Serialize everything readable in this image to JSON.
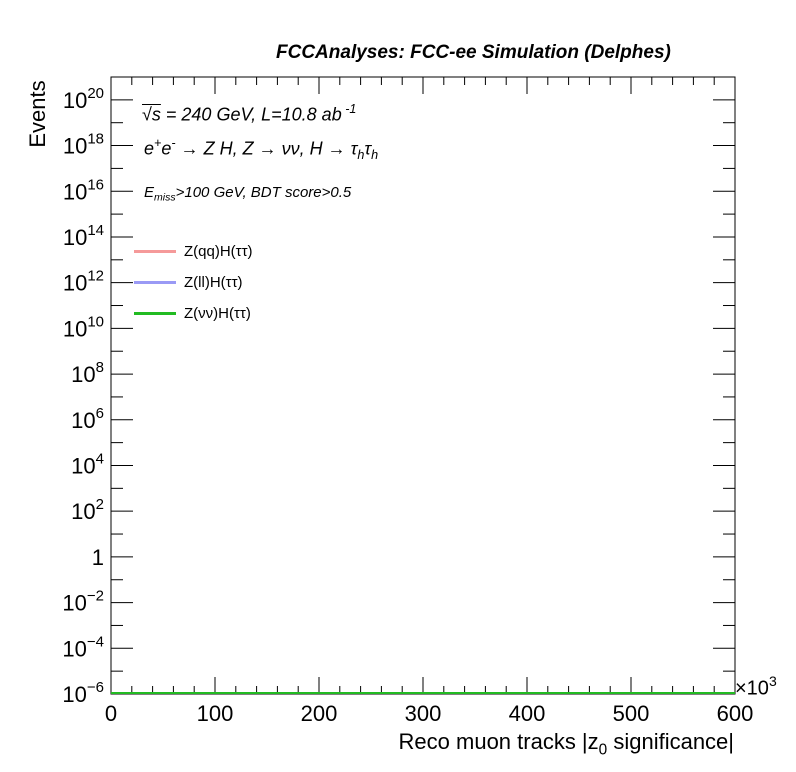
{
  "header": {
    "title": "FCCAnalyses: FCC-ee Simulation (Delphes)"
  },
  "annotations": {
    "line1_sqrt": "√s",
    "line1_rest": " = 240 GeV, L=10.8 ab",
    "line1_exp": " -1",
    "line2_a": "e",
    "line2_a_sup": "+",
    "line2_b": "e",
    "line2_b_sup": "-",
    "line2_c": " → Z H, Z  → νν, H → τ",
    "line2_h1": "h",
    "line2_d": "τ",
    "line2_h2": "h",
    "line3_a": "E",
    "line3_sub": "miss",
    "line3_b": ">100 GeV, BDT score>0.5"
  },
  "axes": {
    "ylabel": "Events",
    "xlabel_a": "Reco muon tracks |z",
    "xlabel_sub": "0",
    "xlabel_b": " significance|",
    "x_multiplier": "×10",
    "x_multiplier_exp": "3"
  },
  "legend": [
    {
      "label": "Z(qq)H(ττ)",
      "color": "#f59a9a"
    },
    {
      "label": "Z(ll)H(ττ)",
      "color": "#9a9af5"
    },
    {
      "label": "Z(νν)H(ττ)",
      "color": "#22bb22"
    }
  ],
  "chart_data": {
    "type": "line",
    "title": "FCCAnalyses: FCC-ee Simulation (Delphes)",
    "xlabel": "Reco muon tracks |z0 significance|",
    "ylabel": "Events",
    "xlim": [
      0,
      600
    ],
    "x_multiplier": "×10^3",
    "ylog": true,
    "ylim": [
      1e-06,
      1e+21
    ],
    "x_ticks": [
      0,
      100,
      200,
      300,
      400,
      500,
      600
    ],
    "y_ticks": [
      {
        "value": 1e-06,
        "base": "10",
        "exp": "−6"
      },
      {
        "value": 0.0001,
        "base": "10",
        "exp": "−4"
      },
      {
        "value": 0.01,
        "base": "10",
        "exp": "−2"
      },
      {
        "value": 1,
        "base": "1",
        "exp": ""
      },
      {
        "value": 100.0,
        "base": "10",
        "exp": "2"
      },
      {
        "value": 10000.0,
        "base": "10",
        "exp": "4"
      },
      {
        "value": 1000000.0,
        "base": "10",
        "exp": "6"
      },
      {
        "value": 100000000.0,
        "base": "10",
        "exp": "8"
      },
      {
        "value": 10000000000.0,
        "base": "10",
        "exp": "10"
      },
      {
        "value": 1000000000000.0,
        "base": "10",
        "exp": "12"
      },
      {
        "value": 100000000000000.0,
        "base": "10",
        "exp": "14"
      },
      {
        "value": 1e+16,
        "base": "10",
        "exp": "16"
      },
      {
        "value": 1e+18,
        "base": "10",
        "exp": "18"
      },
      {
        "value": 1e+20,
        "base": "10",
        "exp": "20"
      }
    ],
    "grid": false,
    "legend_position": "top-left",
    "series": [
      {
        "name": "Z(qq)H(ττ)",
        "color": "#f59a9a",
        "x": [
          0,
          600
        ],
        "y": [
          1e-06,
          1e-06
        ]
      },
      {
        "name": "Z(ll)H(ττ)",
        "color": "#9a9af5",
        "x": [
          0,
          600
        ],
        "y": [
          1e-06,
          1e-06
        ]
      },
      {
        "name": "Z(νν)H(ττ)",
        "color": "#22bb22",
        "x": [
          0,
          600
        ],
        "y": [
          1e-06,
          1e-06
        ]
      }
    ]
  }
}
